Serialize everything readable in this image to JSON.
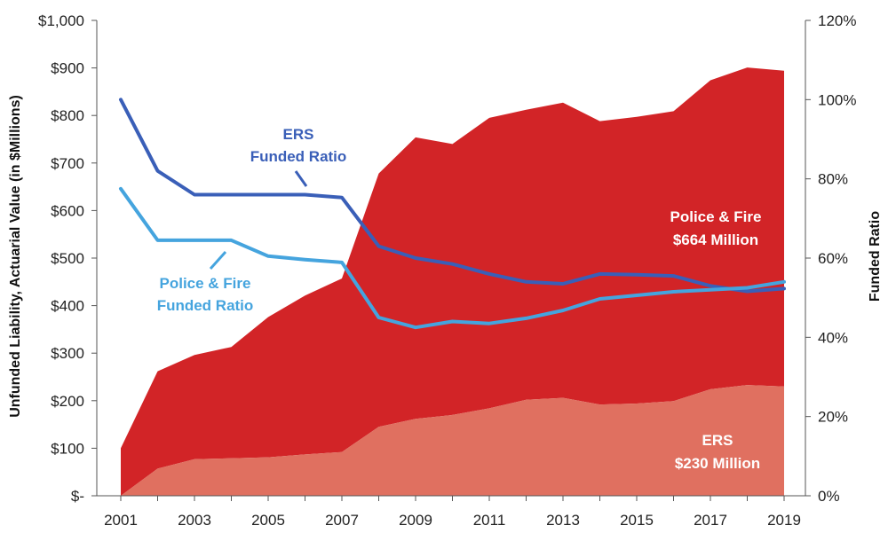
{
  "chart_data": {
    "type": "area",
    "x": [
      2001,
      2002,
      2003,
      2004,
      2005,
      2006,
      2007,
      2008,
      2009,
      2010,
      2011,
      2012,
      2013,
      2014,
      2015,
      2016,
      2017,
      2018,
      2019
    ],
    "x_tick_labels": [
      "2001",
      "2003",
      "2005",
      "2007",
      "2009",
      "2011",
      "2013",
      "2015",
      "2017",
      "2019"
    ],
    "ylabel": "Unfunded Liability, Actuarial Value (in $Millions)",
    "y2label": "Funded Ratio",
    "ylim": [
      0,
      1000
    ],
    "y2lim": [
      0,
      120
    ],
    "y_tick_labels": [
      "$-",
      "$100",
      "$200",
      "$300",
      "$400",
      "$500",
      "$600",
      "$700",
      "$800",
      "$900",
      "$1,000"
    ],
    "y2_tick_labels": [
      "0%",
      "20%",
      "40%",
      "60%",
      "80%",
      "100%",
      "120%"
    ],
    "grid": false,
    "series": [
      {
        "name": "ERS",
        "kind": "area",
        "axis": "left",
        "color": "#E07060",
        "values": [
          0,
          57,
          77,
          79,
          81,
          87,
          92,
          145,
          162,
          170,
          184,
          202,
          206,
          192,
          194,
          199,
          224,
          233,
          230
        ]
      },
      {
        "name": "Police & Fire",
        "kind": "stacked-area",
        "axis": "left",
        "color": "#D22427",
        "values": [
          100,
          205,
          219,
          234,
          295,
          334,
          365,
          533,
          592,
          570,
          611,
          610,
          621,
          596,
          603,
          610,
          650,
          668,
          664
        ],
        "cumulative_total": [
          100,
          262,
          296,
          313,
          376,
          421,
          457,
          678,
          754,
          740,
          795,
          812,
          827,
          788,
          797,
          809,
          874,
          901,
          894
        ]
      },
      {
        "name": "ERS Funded Ratio",
        "kind": "line",
        "axis": "right",
        "color": "#3A5FB8",
        "values": [
          100,
          82,
          76,
          76,
          76,
          76,
          75.3,
          63,
          60,
          58.5,
          56,
          54,
          53.5,
          56,
          55.8,
          55.5,
          53,
          51.6,
          52.3
        ]
      },
      {
        "name": "Police & Fire Funded Ratio",
        "kind": "line",
        "axis": "right",
        "color": "#45A4DE",
        "values": [
          77.5,
          64.5,
          64.5,
          64.5,
          60.5,
          59.6,
          58.9,
          45,
          42.5,
          44,
          43.5,
          44.8,
          46.8,
          49.7,
          50.6,
          51.5,
          52,
          52.5,
          54
        ]
      }
    ],
    "annotations": {
      "ers_ratio": [
        "ERS",
        "Funded Ratio"
      ],
      "pf_ratio": [
        "Police & Fire",
        "Funded Ratio"
      ],
      "pf_area": [
        "Police & Fire",
        "$664 Million"
      ],
      "ers_area": [
        "ERS",
        "$230 Million"
      ]
    }
  }
}
